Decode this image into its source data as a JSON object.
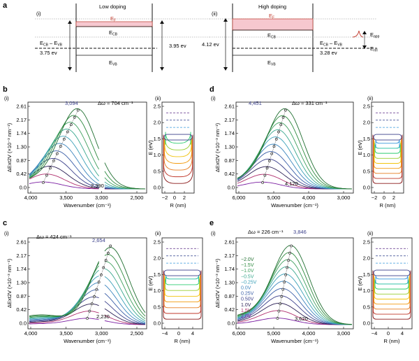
{
  "panel_a": {
    "letter": "a",
    "left": {
      "roman": "(i)",
      "title": "Low doping",
      "ef": "E",
      "ef_sub": "F",
      "ecb": "E",
      "ecb_sub": "CB",
      "evb": "E",
      "evb_sub": "VB",
      "gap_label": "E",
      "gap_sub1": "CB",
      "gap_mid": " – E",
      "gap_sub2": "VB",
      "gap_val": "3.75 ev",
      "right_val": "3.95 ev"
    },
    "right": {
      "roman": "(ii)",
      "title": "High doping",
      "ef": "E",
      "ef_sub": "F",
      "ecb": "E",
      "ecb_sub": "CB",
      "evb": "E",
      "evb_sub": "VB",
      "left_val": "4.12 ev",
      "gap_label": "E",
      "gap_sub1": "CB",
      "gap_mid": " – E",
      "gap_sub2": "VB",
      "gap_val": "3.28 ev",
      "eapp": "E",
      "eapp_sub": "app",
      "erel": "E",
      "erel_sub": "rel"
    }
  },
  "panels": {
    "b": {
      "letter": "b",
      "sub_i": "(i)",
      "sub_ii": "(ii)",
      "peak": "3,094",
      "low": "2,390",
      "shift": "Δω = 704 cm⁻¹"
    },
    "d": {
      "letter": "d",
      "sub_i": "(i)",
      "sub_ii": "(ii)",
      "peak": "4,451",
      "low": "4,120",
      "shift": "Δω = 331 cm⁻¹"
    },
    "c": {
      "letter": "c",
      "sub_i": "(i)",
      "sub_ii": "(ii)",
      "peak": "2,654",
      "low": "2,230",
      "shift": "Δω = 424 cm⁻¹"
    },
    "e": {
      "letter": "e",
      "sub_i": "(i)",
      "sub_ii": "(ii)",
      "peak": "3,846",
      "low": "3,620",
      "shift": "Δω = 226 cm⁻¹"
    }
  },
  "axis_text": {
    "ylabel_spec": "ΔExt",
    "ylabel_sub": "2V",
    "ylabel_units": " (×10⁻³ nm⁻¹)",
    "xlabel_spec": "Wavenumber (cm⁻¹)",
    "ylabel_en": "E (eV)",
    "xlabel_r": "R (nm)"
  },
  "legend_e": [
    "−2.0V",
    "−1.5V",
    "−1.0V",
    "−0.5V",
    "−0.25V",
    "0.0V",
    "0.25V",
    "0.50V",
    "1.0V",
    "1.5V",
    "2.0V"
  ],
  "chart_data": [
    {
      "id": "b-i",
      "type": "line",
      "yticks": [
        "2.61",
        "2.17",
        "1.74",
        "1.30",
        "0.87",
        "0.42",
        "0.0"
      ],
      "xticks": [
        "4,000",
        "3,500",
        "3,000",
        "2,500"
      ],
      "xrange": [
        4000,
        2100
      ],
      "ylim": [
        0,
        2.7
      ]
    },
    {
      "id": "b-ii",
      "type": "line",
      "yticks": [
        "2.5",
        "2.0",
        "1.5",
        "1.0",
        "0.5",
        "0.0"
      ],
      "xticks": [
        "−2",
        "0",
        "2"
      ]
    },
    {
      "id": "d-i",
      "type": "line",
      "yticks": [
        "2.61",
        "2.17",
        "1.74",
        "1.30",
        "0.87",
        "0.42",
        "0.0"
      ],
      "xticks": [
        "6,000",
        "5,000",
        "4,000",
        "3,000"
      ],
      "xrange": [
        6800,
        2500
      ],
      "ylim": [
        0,
        2.7
      ]
    },
    {
      "id": "d-ii",
      "type": "line",
      "yticks": [
        "2.5",
        "2.0",
        "1.5",
        "1.0",
        "0.5",
        "0.0"
      ],
      "xticks": [
        "−2",
        "0",
        "2"
      ]
    },
    {
      "id": "c-i",
      "type": "line",
      "yticks": [
        "2.61",
        "2.17",
        "1.74",
        "1.30",
        "0.87",
        "0.42",
        "0.0"
      ],
      "xticks": [
        "4,000",
        "3,500",
        "3,000",
        "2,500"
      ],
      "xrange": [
        4000,
        2100
      ],
      "ylim": [
        0,
        2.7
      ]
    },
    {
      "id": "c-ii",
      "type": "line",
      "yticks": [
        "2.5",
        "2.0",
        "1.5",
        "1.0",
        "0.5",
        "0.0"
      ],
      "xticks": [
        "−4",
        "0",
        "4"
      ]
    },
    {
      "id": "e-i",
      "type": "line",
      "yticks": [
        "2.61",
        "2.17",
        "1.74",
        "1.30",
        "0.87",
        "0.42",
        "0.0"
      ],
      "xticks": [
        "6,000",
        "5,000",
        "4,000",
        "3,000"
      ],
      "xrange": [
        6800,
        2500
      ],
      "ylim": [
        0,
        2.7
      ]
    },
    {
      "id": "e-ii",
      "type": "line",
      "yticks": [
        "2.5",
        "2.0",
        "1.5",
        "1.0",
        "0.5",
        "0.0"
      ],
      "xticks": [
        "−4",
        "0",
        "4"
      ]
    }
  ],
  "series_colors": [
    "#7b1fa2",
    "#b0306e",
    "#2a1f55",
    "#3a3f8a",
    "#3b5fa8",
    "#3b84bd",
    "#3aa0b8",
    "#3aa88f",
    "#3e9f5e",
    "#2d8a3e",
    "#1f6e30"
  ],
  "well_colors": [
    "#8b1a1a",
    "#c0392b",
    "#e67e22",
    "#f39c12",
    "#f1c40f",
    "#9acd32",
    "#2ecc71",
    "#1abc9c",
    "#3498db",
    "#2c3e8a",
    "#5b2a86"
  ]
}
